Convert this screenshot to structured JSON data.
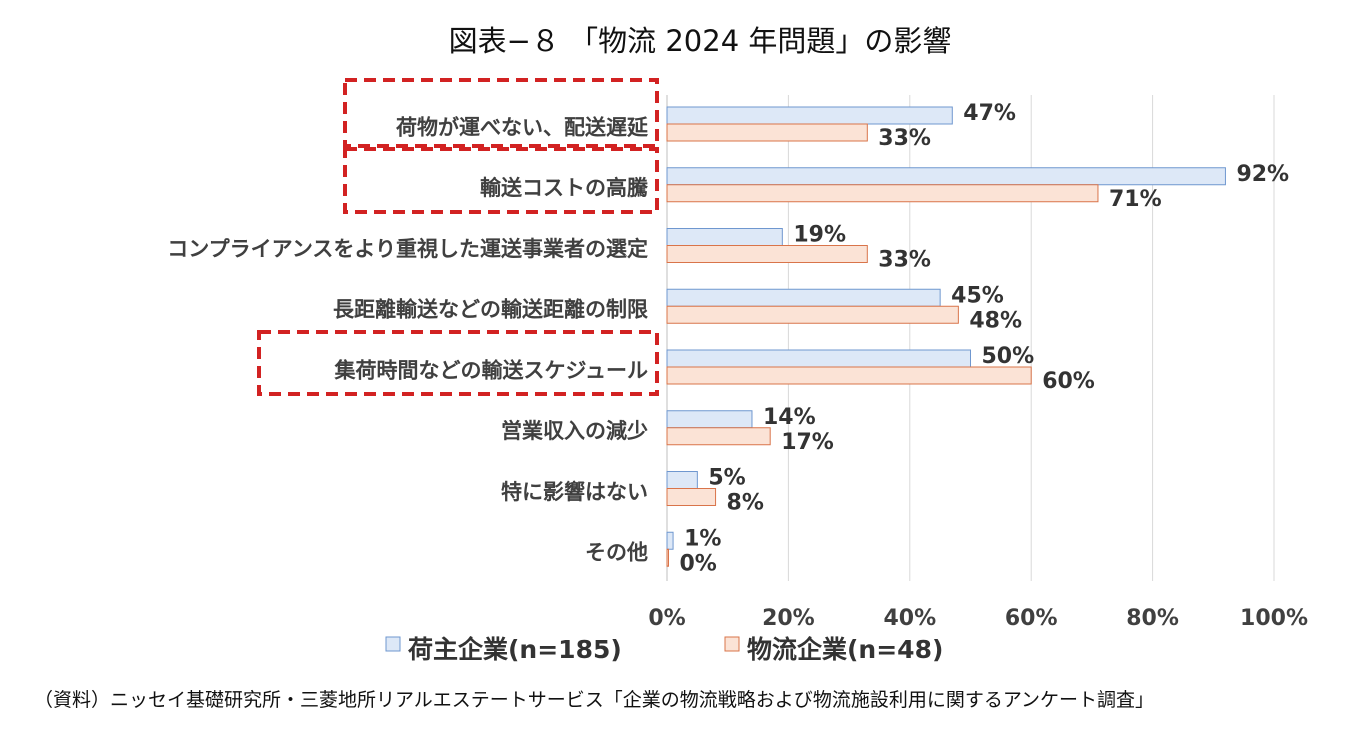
{
  "chart_data": {
    "type": "bar",
    "orientation": "horizontal",
    "title": "図表−８ 「物流 2024 年問題」の影響",
    "categories": [
      "荷物が運べない、配送遅延",
      "輸送コストの高騰",
      "コンプライアンスをより重視した運送事業者の選定",
      "長距離輸送などの輸送距離の制限",
      "集荷時間などの輸送スケジュール",
      "営業収入の減少",
      "特に影響はない",
      "その他"
    ],
    "highlighted_categories": [
      "荷物が運べない、配送遅延",
      "輸送コストの高騰",
      "集荷時間などの輸送スケジュール"
    ],
    "series": [
      {
        "name": "荷主企業(n=185)",
        "values": [
          47,
          92,
          19,
          45,
          50,
          14,
          5,
          1
        ],
        "labels": [
          "47%",
          "92%",
          "19%",
          "45%",
          "50%",
          "14%",
          "5%",
          "1%"
        ],
        "fill": "#dde8f7",
        "stroke": "#6f97cf"
      },
      {
        "name": "物流企業(n=48)",
        "values": [
          33,
          71,
          33,
          48,
          60,
          17,
          8,
          0
        ],
        "labels": [
          "33%",
          "71%",
          "33%",
          "48%",
          "60%",
          "17%",
          "8%",
          "0%"
        ],
        "fill": "#fbe3d6",
        "stroke": "#d9744a"
      }
    ],
    "xlim": [
      0,
      100
    ],
    "xticks": [
      "0%",
      "20%",
      "40%",
      "60%",
      "80%",
      "100%"
    ],
    "grid": true,
    "legend_position": "bottom",
    "highlight_color": "#d22222",
    "source": "（資料）ニッセイ基礎研究所・三菱地所リアルエステートサービス「企業の物流戦略および物流施設利用に関するアンケート調査」"
  }
}
